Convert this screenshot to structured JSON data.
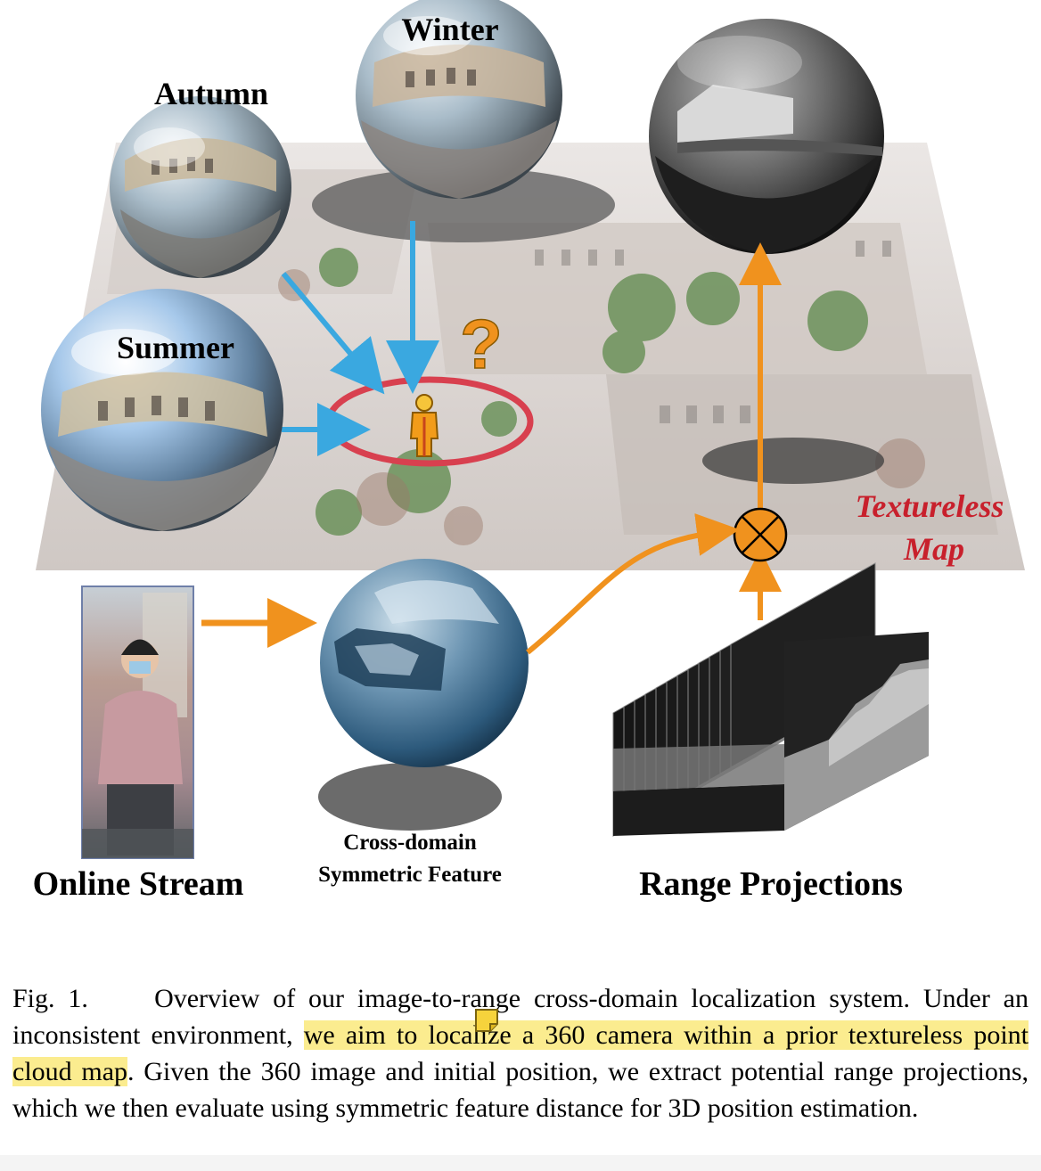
{
  "figure": {
    "labels": {
      "winter": "Winter",
      "autumn": "Autumn",
      "summer": "Summer",
      "question": "?",
      "textureless_line1": "Textureless",
      "textureless_line2": "Map",
      "online_stream": "Online Stream",
      "feature_line1": "Cross-domain",
      "feature_line2": "Symmetric Feature",
      "range_projections": "Range Projections"
    },
    "colors": {
      "blue_arrow": "#3aa8e0",
      "orange_arrow": "#f0921e",
      "red_ellipse": "#d8404f",
      "textureless_label": "#c8202c",
      "highlight": "#fbec8f"
    }
  },
  "caption": {
    "label": "Fig. 1.",
    "text_before": "Overview of our image-to-range cross-domain localization system. Under an inconsistent environment, ",
    "highlighted": "we aim to localize a 360 camera within a prior textureless point cloud map",
    "text_after": ". Given the 360 image and initial position, we extract potential range projections, which we then evaluate using symmetric feature distance for 3D position estimation."
  }
}
